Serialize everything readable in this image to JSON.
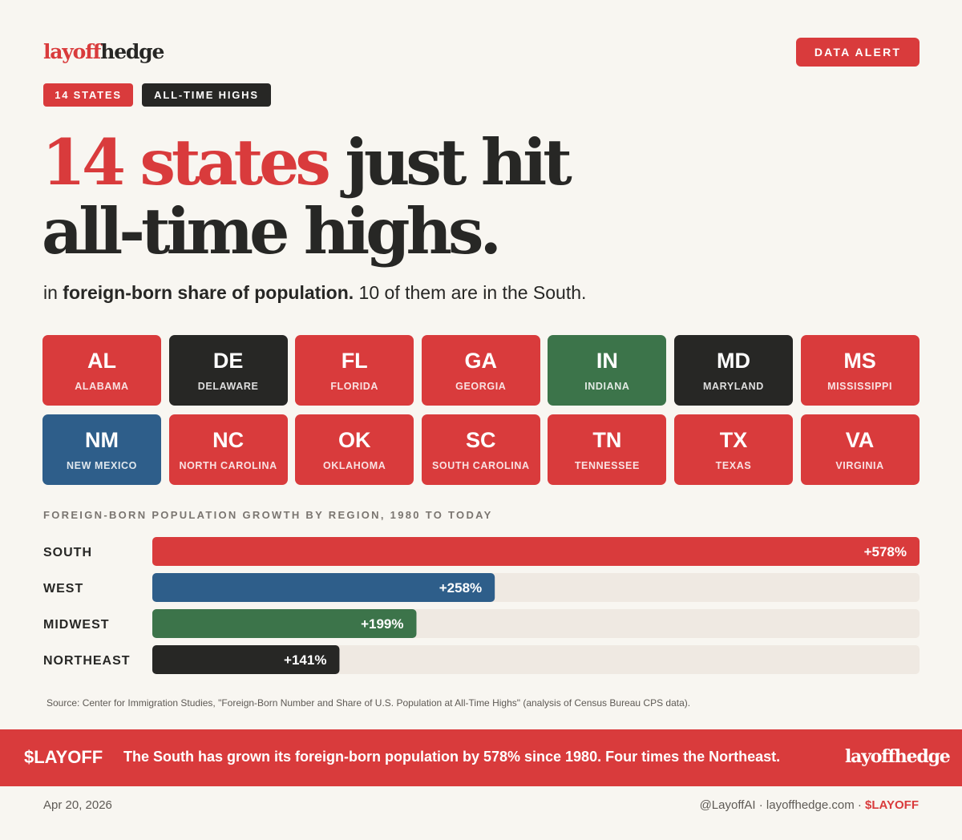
{
  "brand": {
    "logo_part1": "layoff",
    "logo_part2": "hedge"
  },
  "alert_label": "DATA ALERT",
  "tags": [
    "14 STATES",
    "ALL-TIME HIGHS"
  ],
  "headline": {
    "red": "14 states",
    "line1_rest": " just hit",
    "line2": "all-time highs."
  },
  "subline": {
    "pre": "in ",
    "bold": "foreign-born share of population.",
    "post": " 10 of them are in the South."
  },
  "colors": {
    "red": "#d93b3c",
    "dark": "#272725",
    "green": "#3c744a",
    "blue": "#2e5e8a",
    "track": "#efe9e2"
  },
  "states": [
    {
      "abbr": "AL",
      "name": "ALABAMA",
      "color": "red"
    },
    {
      "abbr": "DE",
      "name": "DELAWARE",
      "color": "dark"
    },
    {
      "abbr": "FL",
      "name": "FLORIDA",
      "color": "red"
    },
    {
      "abbr": "GA",
      "name": "GEORGIA",
      "color": "red"
    },
    {
      "abbr": "IN",
      "name": "INDIANA",
      "color": "green"
    },
    {
      "abbr": "MD",
      "name": "MARYLAND",
      "color": "dark"
    },
    {
      "abbr": "MS",
      "name": "MISSISSIPPI",
      "color": "red"
    },
    {
      "abbr": "NM",
      "name": "NEW MEXICO",
      "color": "blue"
    },
    {
      "abbr": "NC",
      "name": "NORTH CAROLINA",
      "color": "red"
    },
    {
      "abbr": "OK",
      "name": "OKLAHOMA",
      "color": "red"
    },
    {
      "abbr": "SC",
      "name": "SOUTH CAROLINA",
      "color": "red"
    },
    {
      "abbr": "TN",
      "name": "TENNESSEE",
      "color": "red"
    },
    {
      "abbr": "TX",
      "name": "TEXAS",
      "color": "red"
    },
    {
      "abbr": "VA",
      "name": "VIRGINIA",
      "color": "red"
    }
  ],
  "chart_data": {
    "type": "bar",
    "orientation": "horizontal",
    "title": "FOREIGN-BORN POPULATION GROWTH BY REGION, 1980 TO TODAY",
    "categories": [
      "SOUTH",
      "WEST",
      "MIDWEST",
      "NORTHEAST"
    ],
    "values": [
      578,
      258,
      199,
      141
    ],
    "labels": [
      "+578%",
      "+258%",
      "+199%",
      "+141%"
    ],
    "unit": "%",
    "colors": [
      "#d93b3c",
      "#2e5e8a",
      "#3c744a",
      "#272725"
    ],
    "xlim": [
      0,
      578
    ],
    "grid": false
  },
  "source": "Source: Center for Immigration Studies, \"Foreign-Born Number and Share of U.S. Population at All-Time Highs\" (analysis of Census Bureau CPS data).",
  "banner": {
    "ticker": "$LAYOFF",
    "message": "The South has grown its foreign-born population by 578% since 1980. Four times the Northeast.",
    "logo": "layoffhedge"
  },
  "footer": {
    "date": "Apr 20, 2026",
    "handle": "@LayoffAI · layoffhedge.com · ",
    "ticker": "$LAYOFF"
  }
}
